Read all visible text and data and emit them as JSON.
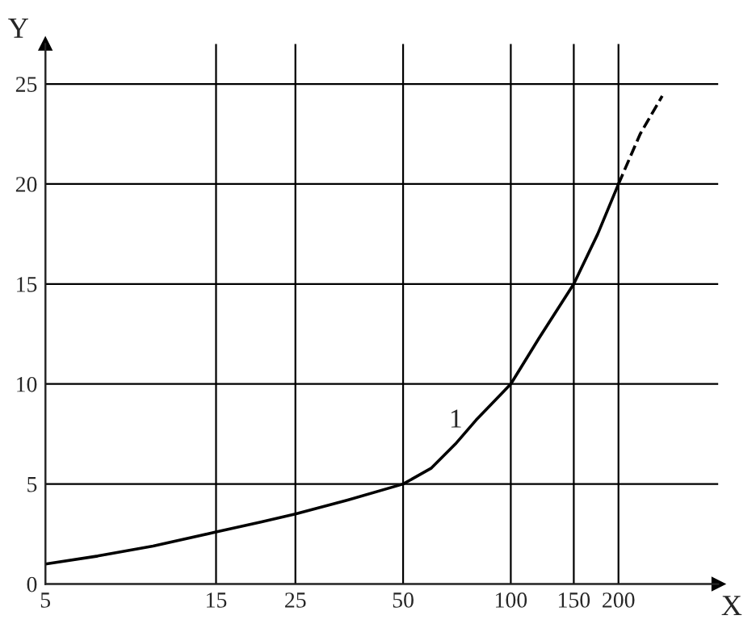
{
  "chart_data": {
    "type": "line",
    "xlabel": "X",
    "ylabel": "Y",
    "log": "x",
    "series": [
      {
        "x": [
          5,
          7,
          10,
          15,
          20,
          25,
          35,
          50,
          60,
          70,
          80,
          100,
          120,
          150,
          175,
          200
        ],
        "values": [
          1,
          1.4,
          1.9,
          2.6,
          3.1,
          3.5,
          4.2,
          5,
          5.8,
          7,
          8.2,
          10,
          12.3,
          15,
          17.5,
          20
        ],
        "color": "#000000",
        "line_style": "solid"
      },
      {
        "x": [
          200,
          230,
          265
        ],
        "values": [
          20,
          22.5,
          24.4
        ],
        "color": "#000000",
        "line_style": "dashed"
      }
    ],
    "annotations": [
      "1"
    ],
    "xlim": [
      5,
      380
    ],
    "ylim": [
      0,
      27
    ],
    "xticks": [
      5,
      15,
      25,
      50,
      100,
      150,
      200
    ],
    "yticks": [
      0,
      5,
      10,
      15,
      20,
      25
    ],
    "grid": true,
    "marker": "none",
    "legend": false
  }
}
